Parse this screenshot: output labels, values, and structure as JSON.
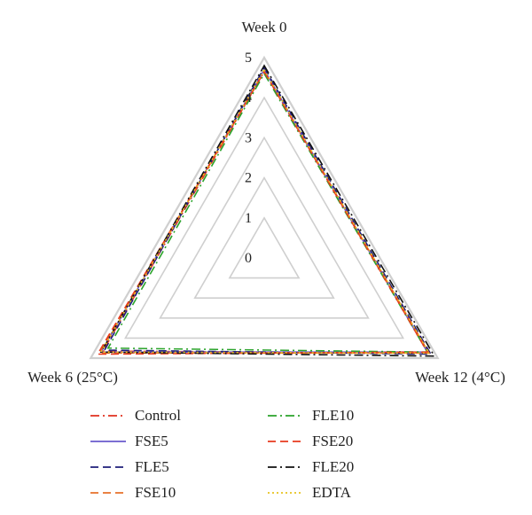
{
  "chart_data": {
    "type": "radar",
    "axes": [
      "Week 0",
      "Week 12 (4°C)",
      "Week 6 (25°C)"
    ],
    "rlim": [
      0,
      5
    ],
    "ticks": [
      "0",
      "1",
      "2",
      "3",
      "4",
      "5"
    ],
    "grid": true,
    "legend_position": "bottom",
    "series": [
      {
        "name": "Control",
        "values": [
          4.65,
          4.75,
          4.65
        ],
        "color": "#e0301e",
        "dash": "dashdot"
      },
      {
        "name": "FSE5",
        "values": [
          4.7,
          4.7,
          4.7
        ],
        "color": "#6a5acd",
        "dash": "solid"
      },
      {
        "name": "FLE5",
        "values": [
          4.75,
          4.8,
          4.6
        ],
        "color": "#1f1f7a",
        "dash": "dashed"
      },
      {
        "name": "FSE10",
        "values": [
          4.65,
          4.75,
          4.75
        ],
        "color": "#e8702a",
        "dash": "dashed"
      },
      {
        "name": "FLE10",
        "values": [
          4.6,
          4.7,
          4.5
        ],
        "color": "#2aa32a",
        "dash": "dashdot"
      },
      {
        "name": "FSE20",
        "values": [
          4.65,
          4.7,
          4.8
        ],
        "color": "#e83a1e",
        "dash": "dashed"
      },
      {
        "name": "FLE20",
        "values": [
          4.8,
          4.9,
          4.7
        ],
        "color": "#111111",
        "dash": "dashdot"
      },
      {
        "name": "EDTA",
        "values": [
          4.7,
          4.75,
          4.7
        ],
        "color": "#e8c31e",
        "dash": "dotted"
      }
    ]
  }
}
